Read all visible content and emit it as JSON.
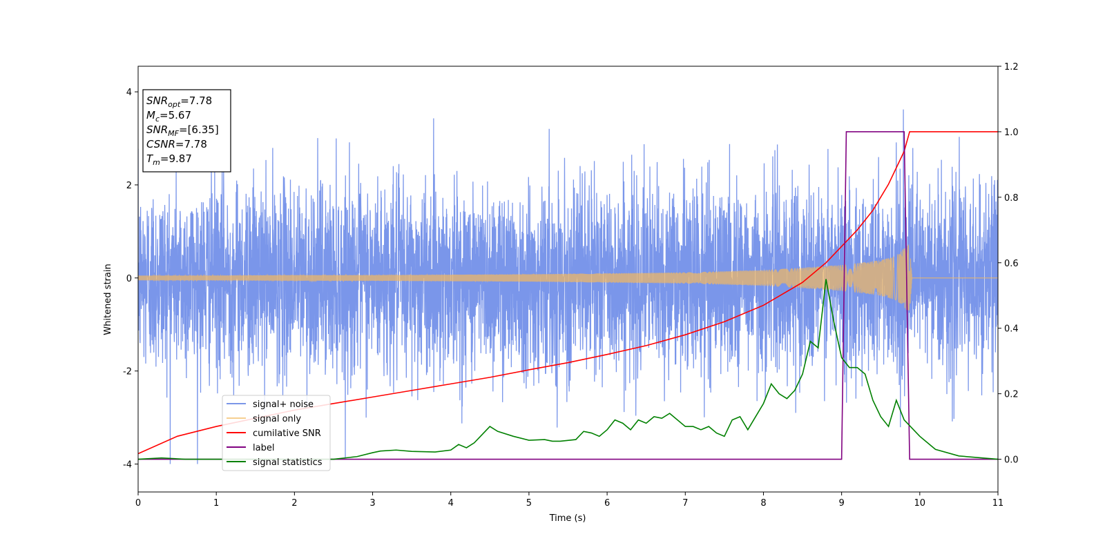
{
  "chart_data": {
    "type": "line",
    "xlabel": "Time (s)",
    "ylabel": "Whitened strain",
    "xlim": [
      0,
      11
    ],
    "ylim_left": [
      -4.6,
      4.55
    ],
    "ylim_right": [
      -0.1,
      1.2
    ],
    "x_ticks": [
      0,
      1,
      2,
      3,
      4,
      5,
      6,
      7,
      8,
      9,
      10,
      11
    ],
    "y_ticks_left": [
      -4,
      -2,
      0,
      2,
      4
    ],
    "y_ticks_right": [
      0.0,
      0.2,
      0.4,
      0.6,
      0.8,
      1.0,
      1.2
    ],
    "grid": false,
    "legend_position": "lower-left",
    "info_box": {
      "lines": [
        {
          "base": "SNR",
          "sub": "opt",
          "value": "=7.78"
        },
        {
          "base": "M",
          "sub": "c",
          "value": "=5.67"
        },
        {
          "base": "SNR",
          "sub": "MF",
          "value": "=[6.35]"
        },
        {
          "base": "CSNR",
          "sub": "",
          "value": "=7.78"
        },
        {
          "base": "T",
          "sub": "m",
          "value": "=9.87"
        }
      ]
    },
    "series": [
      {
        "name": "signal+ noise",
        "color": "#4169E1",
        "axis": "left",
        "kind": "noise",
        "sigma": 1.0,
        "x_range": [
          0,
          11
        ]
      },
      {
        "name": "signal only",
        "color": "#F4B860",
        "axis": "left",
        "kind": "chirp_envelope",
        "envelope_x": [
          0,
          1,
          2,
          3,
          4,
          5,
          6,
          7,
          8,
          8.5,
          9,
          9.5,
          9.7,
          9.87,
          9.9,
          11
        ],
        "envelope_amp": [
          0.05,
          0.05,
          0.06,
          0.06,
          0.07,
          0.08,
          0.1,
          0.12,
          0.17,
          0.22,
          0.28,
          0.38,
          0.48,
          0.75,
          0.0,
          0.0
        ]
      },
      {
        "name": "cumilative SNR",
        "color": "#FF0000",
        "axis": "right",
        "x": [
          0,
          0.5,
          1,
          1.5,
          2,
          2.5,
          3,
          3.5,
          4,
          4.5,
          5,
          5.5,
          6,
          6.5,
          7,
          7.5,
          8,
          8.5,
          8.8,
          9,
          9.2,
          9.4,
          9.6,
          9.7,
          9.8,
          9.87,
          9.88,
          11
        ],
        "y": [
          0.017,
          0.07,
          0.1,
          0.125,
          0.15,
          0.17,
          0.19,
          0.21,
          0.23,
          0.25,
          0.273,
          0.295,
          0.32,
          0.347,
          0.38,
          0.42,
          0.47,
          0.54,
          0.6,
          0.65,
          0.7,
          0.76,
          0.84,
          0.89,
          0.94,
          1.0,
          1.0,
          1.0
        ]
      },
      {
        "name": "label",
        "color": "#800080",
        "axis": "right",
        "x": [
          0,
          9.0,
          9.06,
          9.8,
          9.87,
          11
        ],
        "y": [
          0,
          0,
          1,
          1,
          0,
          0
        ]
      },
      {
        "name": "signal statistics",
        "color": "#008000",
        "axis": "right",
        "x": [
          0,
          0.3,
          0.6,
          1,
          1.5,
          2,
          2.5,
          2.8,
          3.0,
          3.1,
          3.3,
          3.5,
          3.8,
          4.0,
          4.1,
          4.2,
          4.3,
          4.4,
          4.5,
          4.6,
          4.8,
          5.0,
          5.2,
          5.3,
          5.4,
          5.6,
          5.7,
          5.8,
          5.9,
          6.0,
          6.1,
          6.2,
          6.3,
          6.4,
          6.5,
          6.6,
          6.7,
          6.8,
          7.0,
          7.1,
          7.2,
          7.3,
          7.4,
          7.5,
          7.6,
          7.7,
          7.8,
          7.9,
          8.0,
          8.1,
          8.2,
          8.3,
          8.4,
          8.5,
          8.6,
          8.7,
          8.8,
          8.9,
          9.0,
          9.1,
          9.2,
          9.3,
          9.4,
          9.5,
          9.6,
          9.7,
          9.8,
          10.0,
          10.2,
          10.5,
          11
        ],
        "y": [
          0,
          0.004,
          0,
          0,
          0,
          0,
          0,
          0.008,
          0.02,
          0.025,
          0.028,
          0.024,
          0.022,
          0.028,
          0.045,
          0.035,
          0.05,
          0.075,
          0.1,
          0.085,
          0.07,
          0.058,
          0.06,
          0.055,
          0.055,
          0.06,
          0.085,
          0.08,
          0.07,
          0.09,
          0.12,
          0.11,
          0.09,
          0.12,
          0.11,
          0.13,
          0.125,
          0.14,
          0.1,
          0.1,
          0.09,
          0.1,
          0.08,
          0.07,
          0.12,
          0.13,
          0.09,
          0.13,
          0.17,
          0.23,
          0.2,
          0.185,
          0.21,
          0.26,
          0.36,
          0.34,
          0.55,
          0.42,
          0.31,
          0.28,
          0.28,
          0.26,
          0.18,
          0.13,
          0.1,
          0.18,
          0.12,
          0.07,
          0.03,
          0.01,
          0
        ]
      }
    ]
  }
}
